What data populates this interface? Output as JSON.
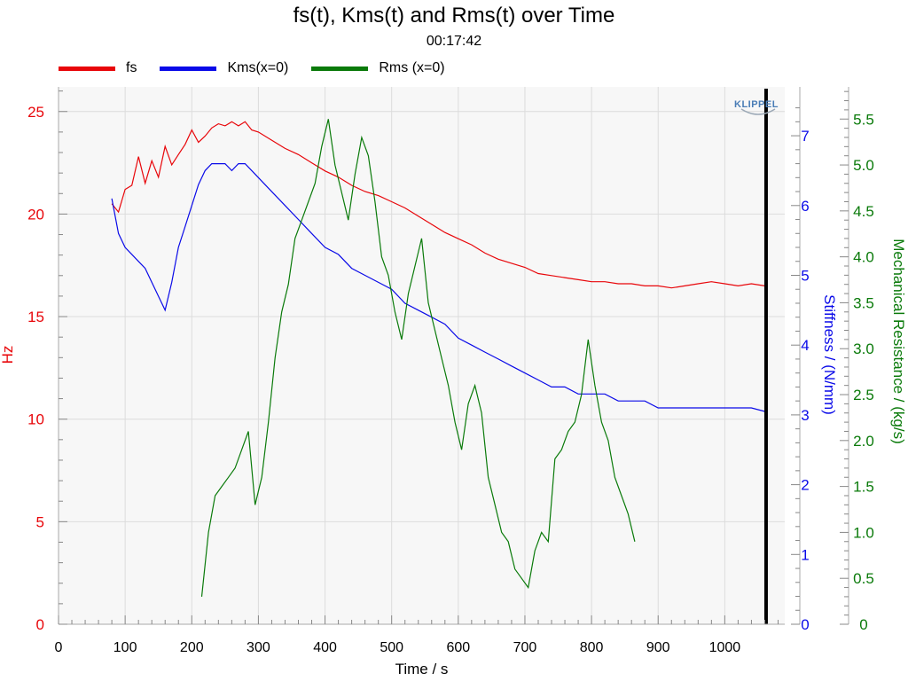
{
  "header": {
    "title": "fs(t), Kms(t) and Rms(t) over Time",
    "subtitle": "00:17:42"
  },
  "logo": {
    "text": "KLIPPEL"
  },
  "chart_data": {
    "type": "line",
    "xlabel": "Time / s",
    "xlim": [
      0,
      1090
    ],
    "xticks": [
      0,
      100,
      200,
      300,
      400,
      500,
      600,
      700,
      800,
      900,
      1000
    ],
    "marker_x": 1062,
    "grid": true,
    "legend_placement": "top-left",
    "axes": {
      "left": {
        "label": "Hz",
        "range": [
          0,
          26.2
        ],
        "ticks": [
          0,
          5,
          10,
          15,
          20,
          25
        ],
        "color": "#e8060a"
      },
      "right1": {
        "label": "Stiffness / (N/mm)",
        "range": [
          0,
          7.7
        ],
        "ticks": [
          0,
          1,
          2,
          3,
          4,
          5,
          6,
          7
        ],
        "color": "#0a0ae8"
      },
      "right2": {
        "label": "Mechanical Resistance / (kg/s)",
        "range": [
          0,
          5.85
        ],
        "ticks": [
          "0",
          "0.5",
          "1.0",
          "1.5",
          "2.0",
          "2.5",
          "3.0",
          "3.5",
          "4.0",
          "4.5",
          "5.0",
          "5.5"
        ],
        "color": "#0a7a0a"
      }
    },
    "series": [
      {
        "name": "fs",
        "axis": "left",
        "color": "#e8060a",
        "x": [
          80,
          90,
          100,
          110,
          120,
          130,
          140,
          150,
          160,
          170,
          180,
          190,
          200,
          210,
          220,
          230,
          240,
          250,
          260,
          270,
          280,
          290,
          300,
          320,
          340,
          360,
          380,
          400,
          420,
          440,
          460,
          480,
          500,
          520,
          540,
          560,
          580,
          600,
          620,
          640,
          660,
          680,
          700,
          720,
          740,
          760,
          780,
          800,
          820,
          840,
          860,
          880,
          900,
          920,
          940,
          960,
          980,
          1000,
          1020,
          1040,
          1060
        ],
        "y": [
          20.5,
          20.1,
          21.2,
          21.4,
          22.8,
          21.5,
          22.6,
          21.8,
          23.3,
          22.4,
          22.9,
          23.4,
          24.1,
          23.5,
          23.8,
          24.2,
          24.4,
          24.3,
          24.5,
          24.3,
          24.5,
          24.1,
          24.0,
          23.6,
          23.2,
          22.9,
          22.5,
          22.1,
          21.8,
          21.4,
          21.1,
          20.9,
          20.6,
          20.3,
          19.9,
          19.5,
          19.1,
          18.8,
          18.5,
          18.1,
          17.8,
          17.6,
          17.4,
          17.1,
          17.0,
          16.9,
          16.8,
          16.7,
          16.7,
          16.6,
          16.6,
          16.5,
          16.5,
          16.4,
          16.5,
          16.6,
          16.7,
          16.6,
          16.5,
          16.6,
          16.5
        ]
      },
      {
        "name": "Kms(x=0)",
        "axis": "right1",
        "color": "#0a0ae8",
        "x": [
          80,
          90,
          100,
          110,
          120,
          130,
          140,
          150,
          160,
          170,
          180,
          190,
          200,
          210,
          220,
          230,
          240,
          250,
          260,
          270,
          280,
          290,
          300,
          320,
          340,
          360,
          380,
          400,
          420,
          440,
          460,
          480,
          500,
          520,
          540,
          560,
          580,
          600,
          620,
          640,
          660,
          680,
          700,
          720,
          740,
          760,
          780,
          800,
          820,
          840,
          860,
          880,
          900,
          920,
          940,
          960,
          980,
          1000,
          1020,
          1040,
          1060
        ],
        "y": [
          6.1,
          5.6,
          5.4,
          5.3,
          5.2,
          5.1,
          4.9,
          4.7,
          4.5,
          4.9,
          5.4,
          5.7,
          6.0,
          6.3,
          6.5,
          6.6,
          6.6,
          6.6,
          6.5,
          6.6,
          6.6,
          6.5,
          6.4,
          6.2,
          6.0,
          5.8,
          5.6,
          5.4,
          5.3,
          5.1,
          5.0,
          4.9,
          4.8,
          4.6,
          4.5,
          4.4,
          4.3,
          4.1,
          4.0,
          3.9,
          3.8,
          3.7,
          3.6,
          3.5,
          3.4,
          3.4,
          3.3,
          3.3,
          3.3,
          3.2,
          3.2,
          3.2,
          3.1,
          3.1,
          3.1,
          3.1,
          3.1,
          3.1,
          3.1,
          3.1,
          3.05
        ]
      },
      {
        "name": "Rms (x=0)",
        "axis": "right2",
        "color": "#0a7a0a",
        "x": [
          215,
          225,
          235,
          245,
          255,
          265,
          275,
          285,
          295,
          305,
          315,
          325,
          335,
          345,
          355,
          365,
          375,
          385,
          395,
          405,
          415,
          425,
          435,
          445,
          455,
          465,
          475,
          485,
          495,
          505,
          515,
          525,
          535,
          545,
          555,
          565,
          575,
          585,
          595,
          605,
          615,
          625,
          635,
          645,
          655,
          665,
          675,
          685,
          695,
          705,
          715,
          725,
          735,
          745,
          755,
          765,
          775,
          785,
          795,
          805,
          815,
          825,
          835,
          845,
          855,
          865
        ],
        "y": [
          0.3,
          1.0,
          1.4,
          1.5,
          1.6,
          1.7,
          1.9,
          2.1,
          1.3,
          1.6,
          2.2,
          2.9,
          3.4,
          3.7,
          4.2,
          4.4,
          4.6,
          4.8,
          5.2,
          5.5,
          5.0,
          4.7,
          4.4,
          4.9,
          5.3,
          5.1,
          4.6,
          4.0,
          3.8,
          3.4,
          3.1,
          3.6,
          3.9,
          4.2,
          3.5,
          3.2,
          2.9,
          2.6,
          2.2,
          1.9,
          2.4,
          2.6,
          2.3,
          1.6,
          1.3,
          1.0,
          0.9,
          0.6,
          0.5,
          0.4,
          0.8,
          1.0,
          0.9,
          1.8,
          1.9,
          2.1,
          2.2,
          2.5,
          3.1,
          2.6,
          2.2,
          2.0,
          1.6,
          1.4,
          1.2,
          0.9
        ]
      }
    ]
  }
}
